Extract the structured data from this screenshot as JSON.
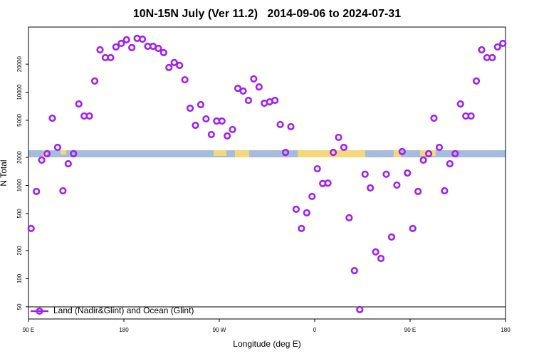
{
  "chart_data": {
    "type": "scatter",
    "title": "10N-15N July (Ver 11.2)   2014-09-06 to 2024-07-31",
    "x_label": "Longitude (deg E)",
    "y_label": "N Total",
    "log_y": true,
    "legend": "bottom-left",
    "xlim": [
      90,
      540
    ],
    "ylim": [
      37,
      50000
    ],
    "xticks": [
      {
        "value": 90,
        "label": "90 E"
      },
      180,
      {
        "value": 270,
        "label": "90 W"
      },
      {
        "value": 360,
        "label": "0"
      },
      {
        "value": 450,
        "label": "90 E"
      },
      {
        "value": 540,
        "label": "180"
      }
    ],
    "yticks": [
      50,
      100,
      200,
      500,
      1000,
      2000,
      5000,
      10000,
      20000
    ],
    "series": [
      {
        "name": "Land (Nadir&Glint) and Ocean (Glint)",
        "color": "#a020f0",
        "x": [
          92.5,
          97.5,
          102.5,
          107.5,
          112.5,
          117.5,
          122.5,
          127.5,
          132.5,
          137.5,
          142.5,
          147.5,
          152.5,
          157.5,
          162.5,
          167.5,
          172.5,
          177.5,
          182.5,
          187.5,
          192.5,
          197.5,
          202.5,
          207.5,
          212.5,
          217.5,
          222.5,
          227.5,
          232.5,
          237.5,
          242.5,
          247.5,
          252.5,
          257.5,
          262.5,
          267.5,
          272.5,
          277.5,
          282.5,
          287.5,
          292.5,
          297.5,
          302.5,
          307.5,
          312.5,
          317.5,
          322.5,
          327.5,
          332.5,
          337.5,
          342.5,
          347.5,
          352.5,
          357.5,
          362.5,
          367.5,
          372.5,
          377.5,
          382.5,
          387.5,
          392.5,
          397.5,
          402.5,
          407.5,
          412.5,
          417.5,
          422.5,
          427.5,
          432.5,
          437.5,
          442.5,
          447.5,
          452.5,
          457.5,
          462.5,
          467.5,
          472.5,
          477.5,
          482.5,
          487.5,
          492.5,
          497.5,
          502.5,
          507.5,
          512.5,
          517.5,
          522.5,
          527.5,
          532.5,
          537.5
        ],
        "values": [
          346,
          863,
          1870,
          2190,
          5270,
          2560,
          877,
          1710,
          2190,
          7490,
          5560,
          5560,
          13200,
          28500,
          23500,
          23500,
          30600,
          33400,
          36500,
          30100,
          37800,
          37100,
          31100,
          31100,
          29500,
          26600,
          18400,
          20800,
          19400,
          13600,
          6740,
          4420,
          7360,
          5180,
          3520,
          4910,
          4910,
          3400,
          3980,
          11000,
          10300,
          8180,
          13900,
          11400,
          7620,
          7890,
          8180,
          4500,
          2260,
          4270,
          556,
          346,
          509,
          762,
          1510,
          1050,
          1060,
          2260,
          3280,
          2560,
          450,
          122,
          46.6,
          1320,
          942,
          194,
          165,
          1320,
          280,
          1010,
          2310,
          1360,
          346,
          863,
          1870,
          2190,
          5270,
          2560,
          877,
          1710,
          2190,
          7490,
          5560,
          5560,
          13200,
          28500,
          23500,
          23500,
          30600,
          33400
        ]
      }
    ]
  }
}
